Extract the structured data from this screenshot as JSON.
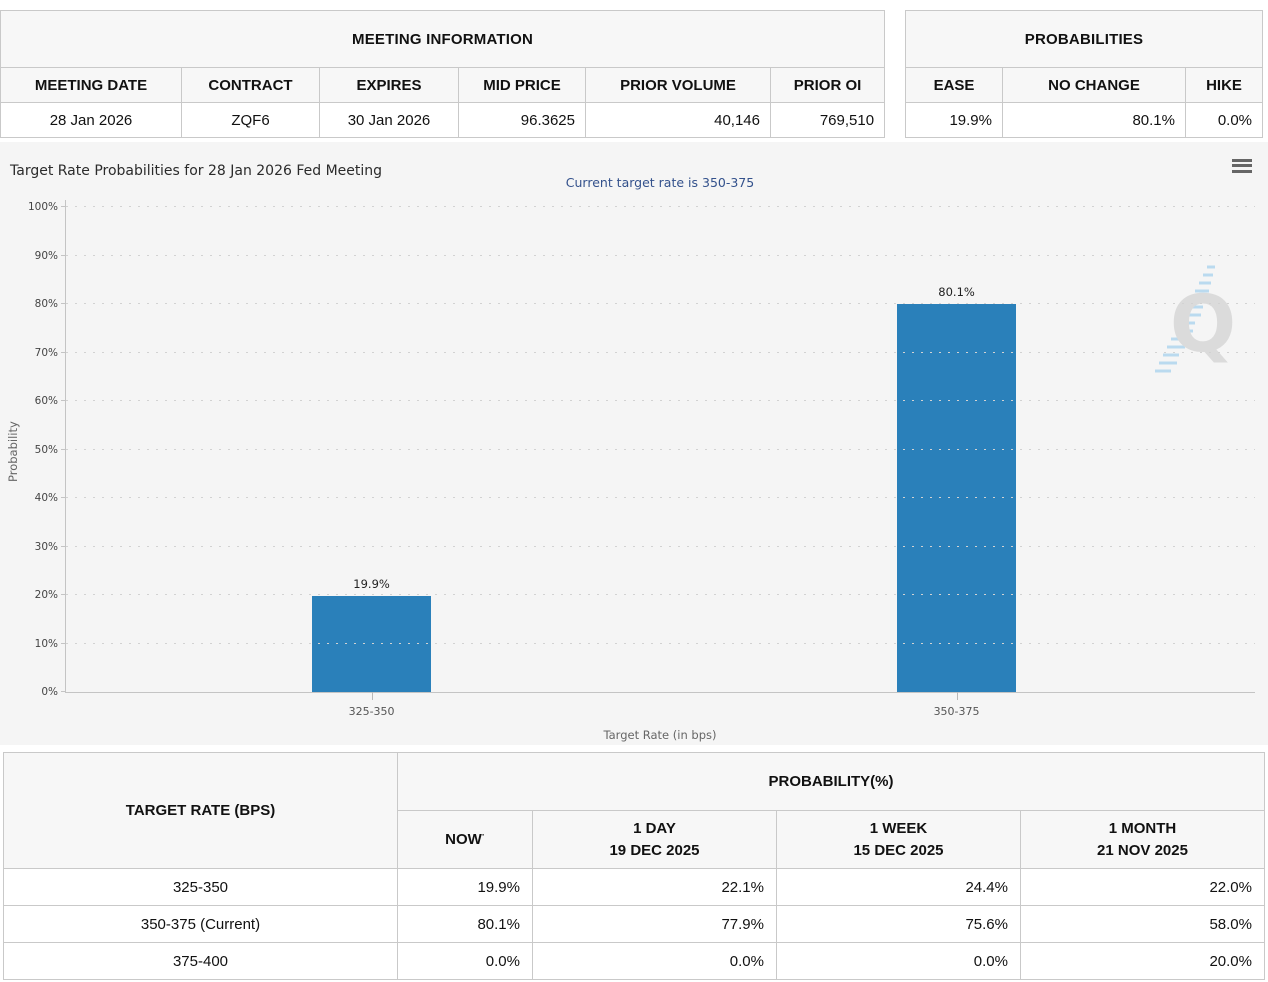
{
  "meeting_info": {
    "title": "MEETING INFORMATION",
    "headers": [
      "MEETING DATE",
      "CONTRACT",
      "EXPIRES",
      "MID PRICE",
      "PRIOR VOLUME",
      "PRIOR OI"
    ],
    "values": [
      "28 Jan 2026",
      "ZQF6",
      "30 Jan 2026",
      "96.3625",
      "40,146",
      "769,510"
    ]
  },
  "probabilities": {
    "title": "PROBABILITIES",
    "headers": [
      "EASE",
      "NO CHANGE",
      "HIKE"
    ],
    "values": [
      "19.9%",
      "80.1%",
      "0.0%"
    ]
  },
  "chart_data": {
    "type": "bar",
    "title": "Target Rate Probabilities for 28 Jan 2026 Fed Meeting",
    "subtitle": "Current target rate is 350-375",
    "categories": [
      "325-350",
      "350-375"
    ],
    "values": [
      19.9,
      80.1
    ],
    "labels": [
      "19.9%",
      "80.1%"
    ],
    "xlabel": "Target Rate (in bps)",
    "ylabel": "Probability",
    "ylim": [
      0,
      100
    ],
    "yticks": [
      "0%",
      "10%",
      "20%",
      "30%",
      "40%",
      "50%",
      "60%",
      "70%",
      "80%",
      "90%",
      "100%"
    ],
    "grid": "horizontal-dotted",
    "legend": "none",
    "bar_color": "#2a80ba",
    "watermark_letter": "Q"
  },
  "rate_table": {
    "corner_header": "TARGET RATE (BPS)",
    "group_header": "PROBABILITY(%)",
    "col_headers": [
      {
        "line1": "NOW",
        "line2": "",
        "sup": "·"
      },
      {
        "line1": "1 DAY",
        "line2": "19 DEC 2025"
      },
      {
        "line1": "1 WEEK",
        "line2": "15 DEC 2025"
      },
      {
        "line1": "1 MONTH",
        "line2": "21 NOV 2025"
      }
    ],
    "rows": [
      {
        "target": "325-350",
        "values": [
          "19.9%",
          "22.1%",
          "24.4%",
          "22.0%"
        ]
      },
      {
        "target": "350-375 (Current)",
        "values": [
          "80.1%",
          "77.9%",
          "75.6%",
          "58.0%"
        ]
      },
      {
        "target": "375-400",
        "values": [
          "0.0%",
          "0.0%",
          "0.0%",
          "20.0%"
        ]
      }
    ],
    "now_highlight": "#f6f6d2"
  }
}
